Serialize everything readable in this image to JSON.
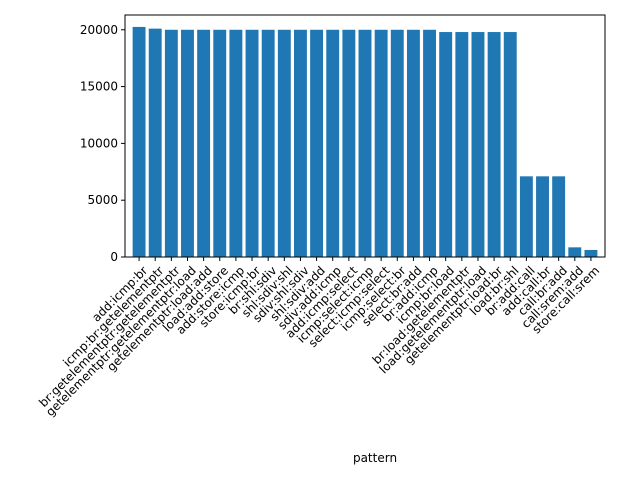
{
  "chart_data": {
    "type": "bar",
    "title": "",
    "xlabel": "pattern",
    "ylabel": "",
    "ylim": [
      0,
      21300
    ],
    "yticks": [
      0,
      5000,
      10000,
      15000,
      20000
    ],
    "ytick_labels": [
      "0",
      "5000",
      "10000",
      "15000",
      "20000"
    ],
    "grid": false,
    "bar_color": "#1f77b4",
    "categories": [
      "add:icmp:br",
      "icmp:br:getelementptr",
      "br:getelementptr:getelementptr",
      "getelementptr:getelementptr:load",
      "getelementptr:load:add",
      "load:add:store",
      "add:store:icmp",
      "store:icmp:br",
      "br:shl:sdiv",
      "shl:sdiv:shl",
      "sdiv:shl:sdiv",
      "shl:sdiv:add",
      "sdiv:add:icmp",
      "add:icmp:select",
      "icmp:select:icmp",
      "select:icmp:select",
      "icmp:select:br",
      "select:br:add",
      "br:add:icmp",
      "icmp:br:load",
      "br:load:getelementptr",
      "load:getelementptr:load",
      "getelementptr:load:br",
      "load:br:shl",
      "br:add:call",
      "add:call:br",
      "call:br:add",
      "call:srem:add",
      "store:call:srem"
    ],
    "values": [
      20250,
      20100,
      20000,
      20000,
      20000,
      20000,
      20000,
      20000,
      20000,
      20000,
      20000,
      20000,
      20000,
      20000,
      20000,
      20000,
      20000,
      20000,
      20000,
      19800,
      19800,
      19800,
      19800,
      19800,
      7100,
      7100,
      7100,
      850,
      620
    ]
  }
}
